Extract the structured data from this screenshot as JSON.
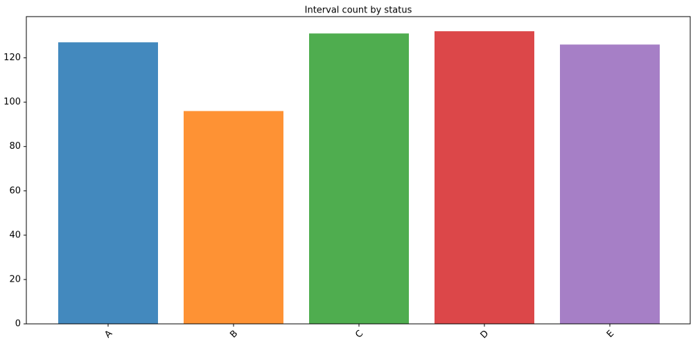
{
  "chart_data": {
    "type": "bar",
    "title": "Interval count by status",
    "categories": [
      "A",
      "B",
      "C",
      "D",
      "E"
    ],
    "values": [
      127,
      96,
      131,
      132,
      126
    ],
    "colors": [
      "#4389be",
      "#fe9234",
      "#4fad4f",
      "#dc4749",
      "#a67fc6"
    ],
    "ylim": [
      0,
      138.6
    ],
    "yticks": [
      0,
      20,
      40,
      60,
      80,
      100,
      120
    ],
    "grid": false
  }
}
